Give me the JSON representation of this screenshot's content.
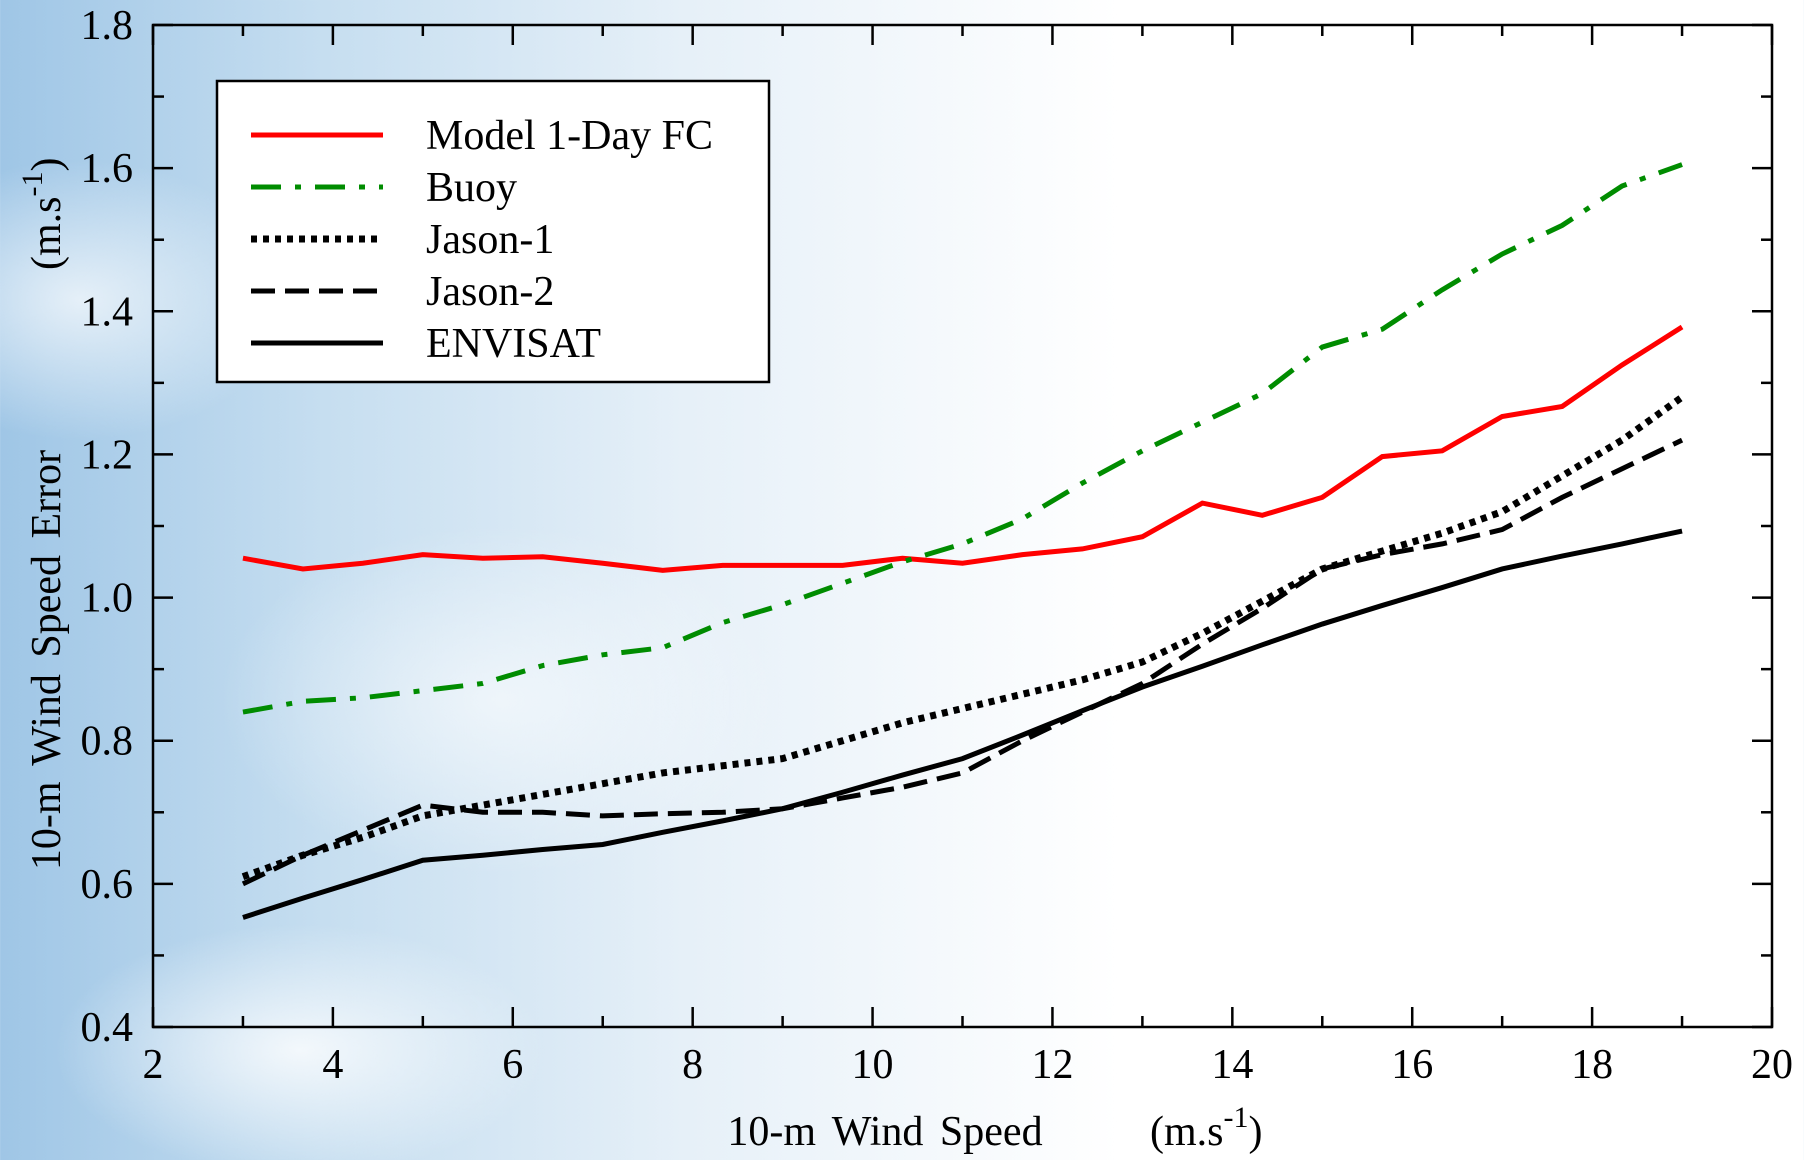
{
  "chart_data": {
    "type": "line",
    "xlabel": "10-m  Wind  Speed",
    "xunit": [
      "(m.s",
      "-1",
      ")"
    ],
    "ylabel": "10-m  Wind  Speed  Error",
    "yunit": [
      "(m.s",
      "-1",
      ")"
    ],
    "x": [
      3,
      3.667,
      4.333,
      5,
      5.667,
      6.333,
      7,
      7.667,
      8.333,
      9,
      9.667,
      10.333,
      11,
      11.667,
      12.333,
      13,
      13.667,
      14.333,
      15,
      15.667,
      16.333,
      17,
      17.667,
      18.333,
      19
    ],
    "series": [
      {
        "name": "Model 1-Day FC",
        "color": "#ff0000",
        "dash": "solid",
        "values": [
          1.055,
          1.04,
          1.048,
          1.06,
          1.055,
          1.057,
          1.048,
          1.038,
          1.045,
          1.045,
          1.045,
          1.055,
          1.048,
          1.06,
          1.068,
          1.085,
          1.132,
          1.115,
          1.14,
          1.197,
          1.205,
          1.253,
          1.267,
          1.325,
          1.378
        ]
      },
      {
        "name": "Buoy",
        "color": "#008c00",
        "dash": "dashdot",
        "values": [
          0.84,
          0.855,
          0.86,
          0.87,
          0.88,
          0.905,
          0.92,
          0.93,
          0.965,
          0.99,
          1.02,
          1.05,
          1.075,
          1.11,
          1.16,
          1.205,
          1.245,
          1.285,
          1.35,
          1.375,
          1.43,
          1.48,
          1.52,
          1.575,
          1.605
        ]
      },
      {
        "name": "Jason-1",
        "color": "#000000",
        "dash": "dotted",
        "values": [
          0.61,
          0.64,
          0.665,
          0.695,
          0.71,
          0.725,
          0.74,
          0.755,
          0.765,
          0.775,
          0.8,
          0.825,
          0.845,
          0.865,
          0.885,
          0.91,
          0.95,
          0.995,
          1.04,
          1.065,
          1.09,
          1.12,
          1.17,
          1.22,
          1.28
        ]
      },
      {
        "name": "Jason-2",
        "color": "#000000",
        "dash": "dashed",
        "values": [
          0.6,
          0.64,
          0.675,
          0.71,
          0.7,
          0.7,
          0.695,
          0.698,
          0.7,
          0.705,
          0.72,
          0.735,
          0.755,
          0.8,
          0.84,
          0.88,
          0.935,
          0.985,
          1.04,
          1.06,
          1.075,
          1.095,
          1.14,
          1.18,
          1.22
        ]
      },
      {
        "name": "ENVISAT",
        "color": "#000000",
        "dash": "solid",
        "values": [
          0.553,
          0.58,
          0.606,
          0.633,
          0.64,
          0.648,
          0.655,
          0.672,
          0.688,
          0.705,
          0.728,
          0.752,
          0.775,
          0.808,
          0.842,
          0.875,
          0.904,
          0.934,
          0.963,
          0.989,
          1.014,
          1.04,
          1.058,
          1.075,
          1.093
        ]
      }
    ],
    "xlim": [
      2,
      20
    ],
    "xticks": [
      2,
      4,
      6,
      8,
      10,
      12,
      14,
      16,
      18,
      20
    ],
    "xminorticks": [
      3,
      5,
      7,
      9,
      11,
      13,
      15,
      17,
      19
    ],
    "ylim": [
      0.4,
      1.8
    ],
    "yticks": [
      0.4,
      0.6,
      0.8,
      {
        "value": 1,
        "label": "1.0"
      },
      1.2,
      1.4,
      1.6,
      1.8
    ],
    "yminorticks": [
      0.5,
      0.7,
      0.9,
      1.1,
      1.3,
      1.5,
      1.7
    ],
    "legend": "upper left"
  }
}
